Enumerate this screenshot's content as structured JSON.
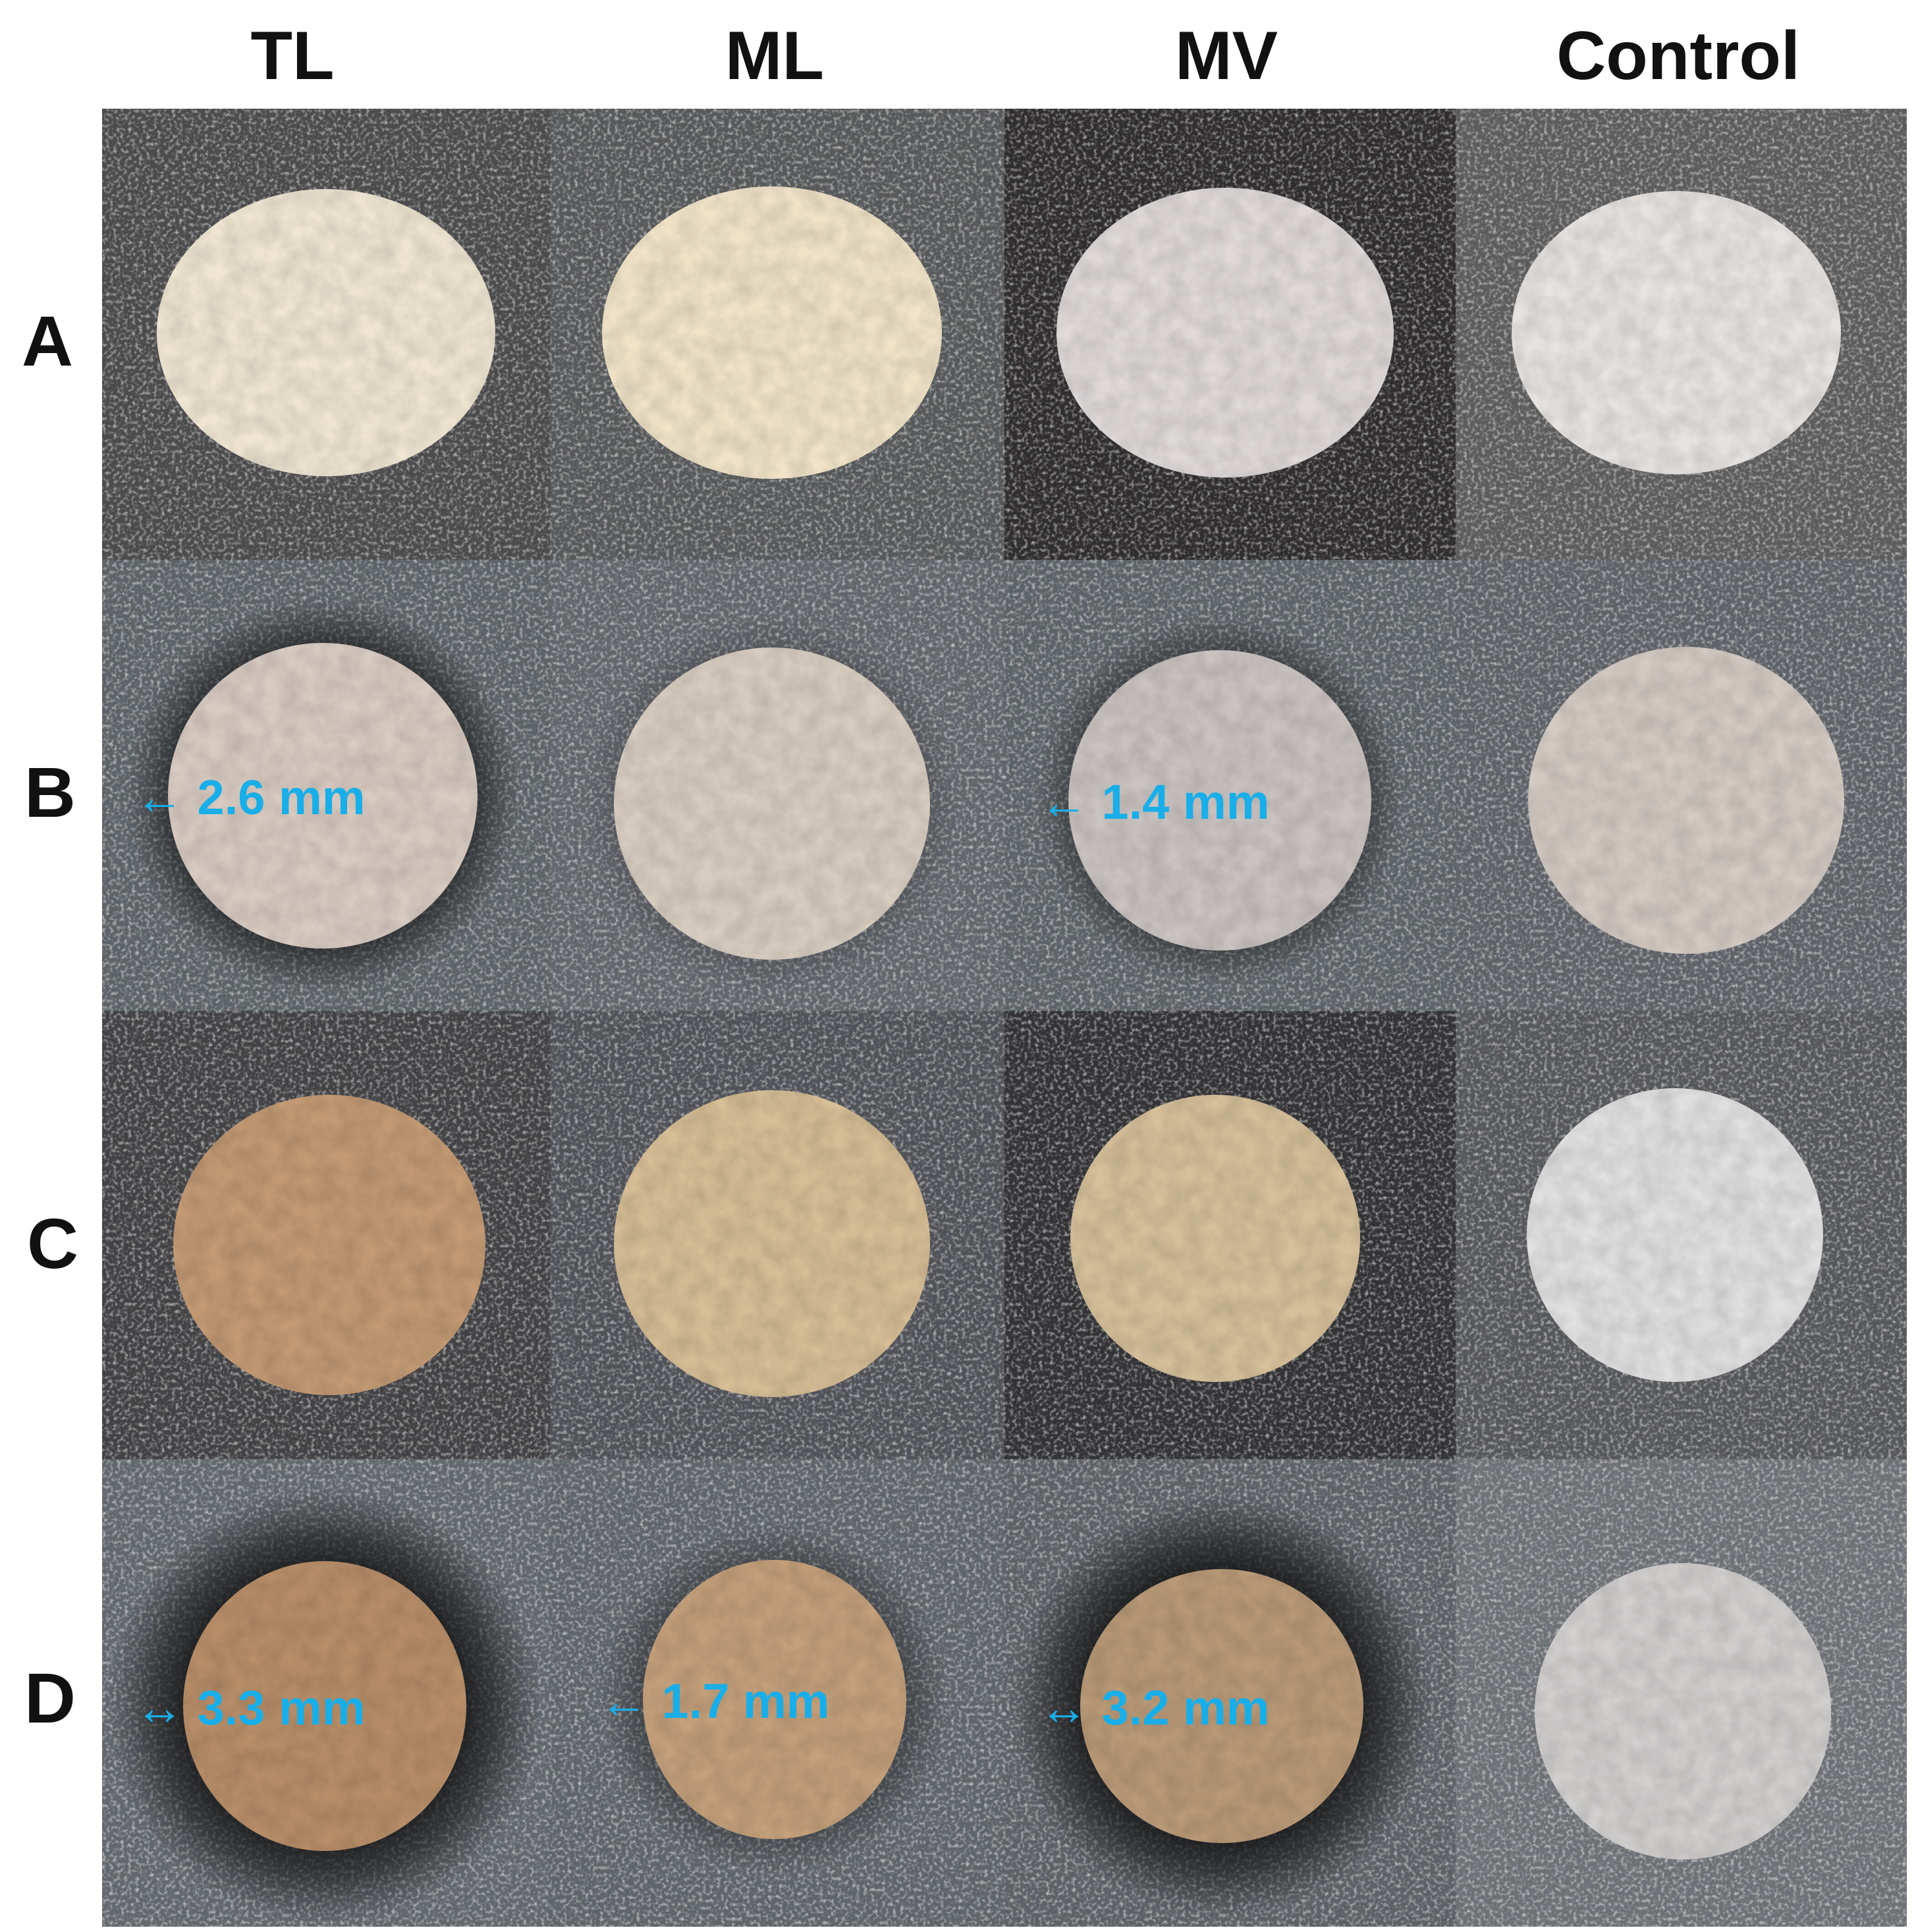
{
  "columns": [
    "TL",
    "ML",
    "MV",
    "Control"
  ],
  "rows": [
    "A",
    "B",
    "C",
    "D"
  ],
  "colors": {
    "annotation": "#19aee8",
    "label": "#111111"
  },
  "panels": [
    [
      {
        "bg": "#4b4b4c",
        "disc": "#efe5d2",
        "halo": 0
      },
      {
        "bg": "#575859",
        "disc": "#f0e3c8",
        "halo": 0
      },
      {
        "bg": "#2f2d2e",
        "disc": "#dfdad9",
        "halo": 0
      },
      {
        "bg": "#5c5c5c",
        "disc": "#e7e3e1",
        "halo": 0
      }
    ],
    [
      {
        "bg": "#5d6266",
        "disc": "#d8cbc2",
        "halo": 1,
        "measure": {
          "text": "2.6 mm",
          "arrow": "←"
        }
      },
      {
        "bg": "#62656a",
        "disc": "#d8cdc1",
        "halo": 0.4
      },
      {
        "bg": "#5d6266",
        "disc": "#c9c3c1",
        "halo": 0.8,
        "measure": {
          "text": "1.4 mm",
          "arrow": "←"
        }
      },
      {
        "bg": "#5e6166",
        "disc": "#d3cac3",
        "halo": 0
      }
    ],
    [
      {
        "bg": "#424244",
        "disc": "#c39a74",
        "halo": 0
      },
      {
        "bg": "#505257",
        "disc": "#d6be96",
        "halo": 0
      },
      {
        "bg": "#333235",
        "disc": "#d5c09a",
        "halo": 0
      },
      {
        "bg": "#56575a",
        "disc": "#e1e0e0",
        "halo": 0
      }
    ],
    [
      {
        "bg": "#62676c",
        "disc": "#b88e69",
        "halo": 1,
        "measure": {
          "text": "3.3 mm",
          "arrow": "↔"
        }
      },
      {
        "bg": "#5f6469",
        "disc": "#c4a07b",
        "halo": 0.6,
        "measure": {
          "text": "1.7 mm",
          "arrow": "←"
        }
      },
      {
        "bg": "#5d6065",
        "disc": "#b99a78",
        "halo": 1,
        "measure": {
          "text": "3.2 mm",
          "arrow": "↔"
        }
      },
      {
        "bg": "#6d7074",
        "disc": "#d2cfcf",
        "halo": 0
      }
    ]
  ]
}
